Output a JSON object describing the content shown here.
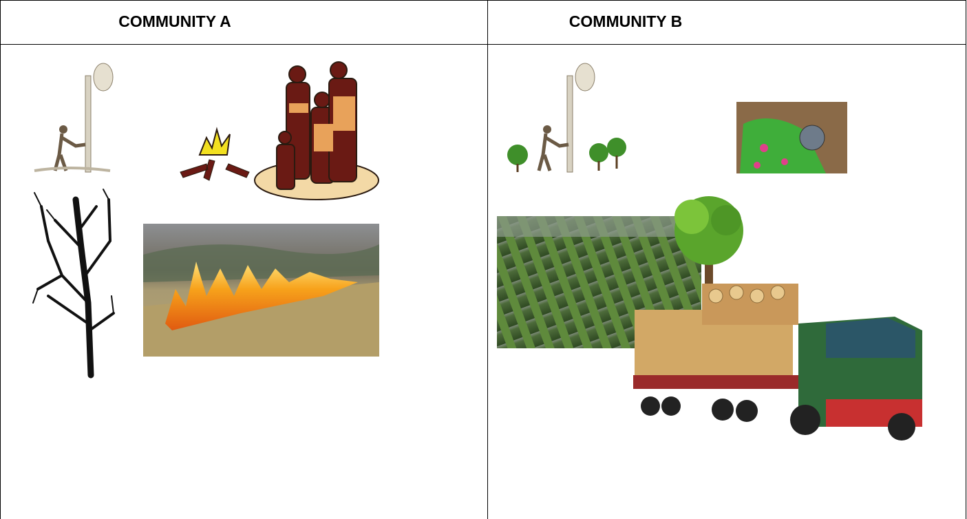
{
  "table": {
    "headers": [
      "COMMUNITY A",
      "COMMUNITY B"
    ]
  }
}
